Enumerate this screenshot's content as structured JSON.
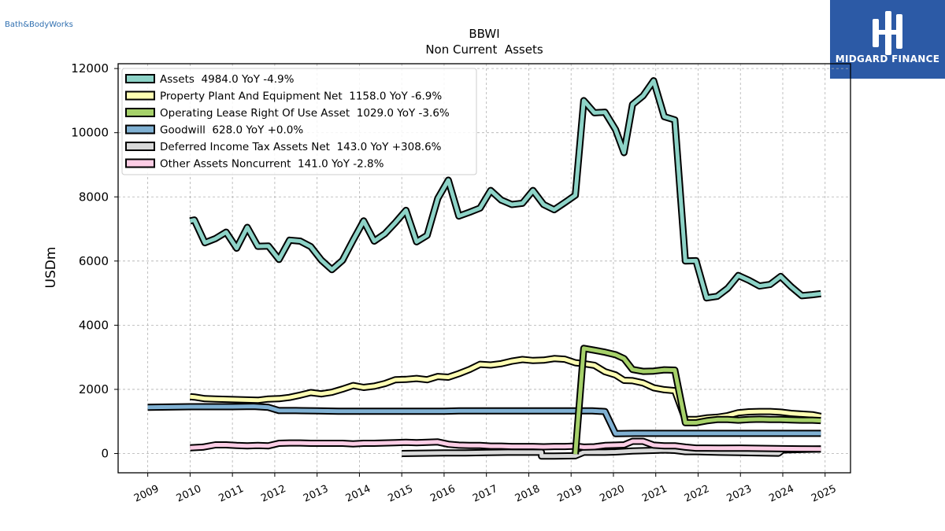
{
  "header": {
    "company_logo_text": "Bath&BodyWorks",
    "brand_name": "MIDGARD FINANCE"
  },
  "chart_data": {
    "type": "line",
    "title": "BBWI",
    "subtitle": "Non Current  Assets",
    "ylabel": "USDm",
    "xlabel": "",
    "ylim": [
      -600,
      12150
    ],
    "xlim": [
      2008.3,
      2025.6
    ],
    "yticks": [
      0,
      2000,
      4000,
      6000,
      8000,
      10000,
      12000
    ],
    "xticks": [
      "2009",
      "2010",
      "2011",
      "2012",
      "2013",
      "2014",
      "2015",
      "2016",
      "2017",
      "2018",
      "2019",
      "2020",
      "2021",
      "2022",
      "2023",
      "2024",
      "2025"
    ],
    "grid": true,
    "legend_position": "top-left",
    "series": [
      {
        "name": "Assets  4984.0 YoY -4.9%",
        "color": "#8dd3c7",
        "points": [
          [
            2010.0,
            7250
          ],
          [
            2010.1,
            7280
          ],
          [
            2010.35,
            6570
          ],
          [
            2010.6,
            6700
          ],
          [
            2010.85,
            6900
          ],
          [
            2011.1,
            6400
          ],
          [
            2011.35,
            7050
          ],
          [
            2011.6,
            6460
          ],
          [
            2011.85,
            6470
          ],
          [
            2012.1,
            6050
          ],
          [
            2012.35,
            6650
          ],
          [
            2012.6,
            6620
          ],
          [
            2012.85,
            6450
          ],
          [
            2013.1,
            6030
          ],
          [
            2013.35,
            5730
          ],
          [
            2013.6,
            6020
          ],
          [
            2013.85,
            6650
          ],
          [
            2014.1,
            7250
          ],
          [
            2014.35,
            6620
          ],
          [
            2014.6,
            6850
          ],
          [
            2014.85,
            7200
          ],
          [
            2015.1,
            7580
          ],
          [
            2015.35,
            6600
          ],
          [
            2015.6,
            6800
          ],
          [
            2015.85,
            7950
          ],
          [
            2016.1,
            8520
          ],
          [
            2016.35,
            7400
          ],
          [
            2016.6,
            7520
          ],
          [
            2016.85,
            7650
          ],
          [
            2017.1,
            8200
          ],
          [
            2017.35,
            7900
          ],
          [
            2017.6,
            7760
          ],
          [
            2017.85,
            7800
          ],
          [
            2018.1,
            8200
          ],
          [
            2018.35,
            7760
          ],
          [
            2018.6,
            7600
          ],
          [
            2018.85,
            7820
          ],
          [
            2019.1,
            8050
          ],
          [
            2019.3,
            11000
          ],
          [
            2019.55,
            10620
          ],
          [
            2019.8,
            10640
          ],
          [
            2020.05,
            10100
          ],
          [
            2020.25,
            9380
          ],
          [
            2020.45,
            10880
          ],
          [
            2020.7,
            11150
          ],
          [
            2020.95,
            11620
          ],
          [
            2021.2,
            10500
          ],
          [
            2021.45,
            10400
          ],
          [
            2021.7,
            6000
          ],
          [
            2021.95,
            6010
          ],
          [
            2022.2,
            4850
          ],
          [
            2022.45,
            4900
          ],
          [
            2022.7,
            5150
          ],
          [
            2022.95,
            5550
          ],
          [
            2023.2,
            5400
          ],
          [
            2023.45,
            5220
          ],
          [
            2023.7,
            5270
          ],
          [
            2023.95,
            5520
          ],
          [
            2024.2,
            5200
          ],
          [
            2024.45,
            4920
          ],
          [
            2024.7,
            4950
          ],
          [
            2024.9,
            4984
          ]
        ]
      },
      {
        "name": "Property Plant And Equipment Net  1158.0 YoY -6.9%",
        "color": "#ffffb3",
        "points": [
          [
            2010.0,
            1770
          ],
          [
            2010.1,
            1760
          ],
          [
            2010.35,
            1710
          ],
          [
            2010.6,
            1700
          ],
          [
            2010.85,
            1690
          ],
          [
            2011.1,
            1680
          ],
          [
            2011.35,
            1670
          ],
          [
            2011.6,
            1660
          ],
          [
            2011.85,
            1700
          ],
          [
            2012.1,
            1710
          ],
          [
            2012.35,
            1750
          ],
          [
            2012.6,
            1820
          ],
          [
            2012.85,
            1900
          ],
          [
            2013.1,
            1860
          ],
          [
            2013.35,
            1910
          ],
          [
            2013.6,
            2010
          ],
          [
            2013.85,
            2120
          ],
          [
            2014.1,
            2060
          ],
          [
            2014.35,
            2100
          ],
          [
            2014.6,
            2180
          ],
          [
            2014.85,
            2300
          ],
          [
            2015.1,
            2310
          ],
          [
            2015.35,
            2340
          ],
          [
            2015.6,
            2300
          ],
          [
            2015.85,
            2400
          ],
          [
            2016.1,
            2380
          ],
          [
            2016.35,
            2490
          ],
          [
            2016.6,
            2620
          ],
          [
            2016.85,
            2780
          ],
          [
            2017.1,
            2760
          ],
          [
            2017.35,
            2800
          ],
          [
            2017.6,
            2880
          ],
          [
            2017.85,
            2930
          ],
          [
            2018.1,
            2900
          ],
          [
            2018.35,
            2910
          ],
          [
            2018.6,
            2960
          ],
          [
            2018.85,
            2940
          ],
          [
            2019.1,
            2830
          ],
          [
            2019.3,
            2800
          ],
          [
            2019.55,
            2750
          ],
          [
            2019.8,
            2550
          ],
          [
            2020.05,
            2450
          ],
          [
            2020.25,
            2280
          ],
          [
            2020.45,
            2270
          ],
          [
            2020.7,
            2200
          ],
          [
            2020.95,
            2050
          ],
          [
            2021.2,
            1990
          ],
          [
            2021.45,
            1960
          ],
          [
            2021.7,
            1060
          ],
          [
            2021.95,
            1060
          ],
          [
            2022.2,
            1110
          ],
          [
            2022.45,
            1130
          ],
          [
            2022.7,
            1180
          ],
          [
            2022.95,
            1270
          ],
          [
            2023.2,
            1300
          ],
          [
            2023.45,
            1310
          ],
          [
            2023.7,
            1310
          ],
          [
            2023.95,
            1290
          ],
          [
            2024.2,
            1250
          ],
          [
            2024.45,
            1230
          ],
          [
            2024.7,
            1210
          ],
          [
            2024.9,
            1158
          ]
        ]
      },
      {
        "name": "Operating Lease Right Of Use Asset  1029.0 YoY -3.6%",
        "color": "#bebada",
        "draw_color": "#a6d16a",
        "points": [
          [
            2019.1,
            -20
          ],
          [
            2019.3,
            3280
          ],
          [
            2019.55,
            3220
          ],
          [
            2019.8,
            3160
          ],
          [
            2020.05,
            3080
          ],
          [
            2020.25,
            2960
          ],
          [
            2020.45,
            2620
          ],
          [
            2020.7,
            2560
          ],
          [
            2020.95,
            2570
          ],
          [
            2021.2,
            2610
          ],
          [
            2021.45,
            2600
          ],
          [
            2021.7,
            960
          ],
          [
            2021.95,
            960
          ],
          [
            2022.2,
            1020
          ],
          [
            2022.45,
            1060
          ],
          [
            2022.7,
            1060
          ],
          [
            2022.95,
            1040
          ],
          [
            2023.2,
            1060
          ],
          [
            2023.45,
            1070
          ],
          [
            2023.7,
            1060
          ],
          [
            2023.95,
            1060
          ],
          [
            2024.2,
            1050
          ],
          [
            2024.45,
            1040
          ],
          [
            2024.7,
            1040
          ],
          [
            2024.9,
            1029
          ]
        ]
      },
      {
        "name": "Goodwill  628.0 YoY +0.0%",
        "color": "#80b1d3",
        "points": [
          [
            2009.0,
            1440
          ],
          [
            2009.5,
            1450
          ],
          [
            2010.0,
            1460
          ],
          [
            2010.5,
            1460
          ],
          [
            2011.0,
            1460
          ],
          [
            2011.5,
            1470
          ],
          [
            2011.85,
            1440
          ],
          [
            2012.1,
            1340
          ],
          [
            2012.5,
            1340
          ],
          [
            2013.0,
            1330
          ],
          [
            2013.5,
            1320
          ],
          [
            2014.0,
            1320
          ],
          [
            2014.5,
            1320
          ],
          [
            2015.0,
            1320
          ],
          [
            2015.5,
            1320
          ],
          [
            2016.0,
            1320
          ],
          [
            2016.35,
            1330
          ],
          [
            2016.6,
            1330
          ],
          [
            2017.0,
            1330
          ],
          [
            2017.5,
            1330
          ],
          [
            2018.0,
            1330
          ],
          [
            2018.5,
            1330
          ],
          [
            2019.0,
            1330
          ],
          [
            2019.5,
            1330
          ],
          [
            2019.8,
            1310
          ],
          [
            2020.05,
            620
          ],
          [
            2020.5,
            628
          ],
          [
            2021.0,
            628
          ],
          [
            2021.5,
            628
          ],
          [
            2022.0,
            628
          ],
          [
            2022.5,
            628
          ],
          [
            2023.0,
            628
          ],
          [
            2023.5,
            628
          ],
          [
            2024.0,
            628
          ],
          [
            2024.5,
            628
          ],
          [
            2024.9,
            628
          ]
        ]
      },
      {
        "name": "Deferred Income Tax Assets Net  143.0 YoY +308.6%",
        "color": "#d9d9d9",
        "points": [
          [
            2015.0,
            0
          ],
          [
            2015.5,
            10
          ],
          [
            2016.0,
            20
          ],
          [
            2016.5,
            20
          ],
          [
            2017.0,
            30
          ],
          [
            2017.5,
            40
          ],
          [
            2018.0,
            40
          ],
          [
            2018.3,
            40
          ],
          [
            2018.3,
            -80
          ],
          [
            2018.6,
            -80
          ],
          [
            2019.1,
            -70
          ],
          [
            2019.3,
            40
          ],
          [
            2019.55,
            40
          ],
          [
            2019.8,
            40
          ],
          [
            2020.05,
            50
          ],
          [
            2020.45,
            80
          ],
          [
            2020.95,
            100
          ],
          [
            2021.2,
            110
          ],
          [
            2021.45,
            100
          ],
          [
            2021.7,
            60
          ],
          [
            2021.95,
            60
          ],
          [
            2022.5,
            40
          ],
          [
            2023.0,
            30
          ],
          [
            2023.5,
            20
          ],
          [
            2023.9,
            10
          ],
          [
            2024.0,
            110
          ],
          [
            2024.5,
            130
          ],
          [
            2024.9,
            143
          ]
        ]
      },
      {
        "name": "Other Assets Noncurrent  141.0 YoY -2.8%",
        "color": "#fccde5",
        "points": [
          [
            2010.0,
            180
          ],
          [
            2010.3,
            200
          ],
          [
            2010.6,
            270
          ],
          [
            2010.85,
            270
          ],
          [
            2011.1,
            250
          ],
          [
            2011.35,
            240
          ],
          [
            2011.6,
            250
          ],
          [
            2011.85,
            240
          ],
          [
            2012.1,
            320
          ],
          [
            2012.35,
            330
          ],
          [
            2012.6,
            330
          ],
          [
            2012.85,
            320
          ],
          [
            2013.1,
            320
          ],
          [
            2013.35,
            320
          ],
          [
            2013.6,
            320
          ],
          [
            2013.85,
            300
          ],
          [
            2014.1,
            320
          ],
          [
            2014.35,
            320
          ],
          [
            2014.6,
            330
          ],
          [
            2014.85,
            340
          ],
          [
            2015.1,
            350
          ],
          [
            2015.35,
            340
          ],
          [
            2015.6,
            350
          ],
          [
            2015.85,
            360
          ],
          [
            2016.1,
            290
          ],
          [
            2016.35,
            260
          ],
          [
            2016.6,
            250
          ],
          [
            2016.85,
            250
          ],
          [
            2017.1,
            230
          ],
          [
            2017.35,
            230
          ],
          [
            2017.6,
            220
          ],
          [
            2017.85,
            220
          ],
          [
            2018.1,
            220
          ],
          [
            2018.35,
            210
          ],
          [
            2018.6,
            220
          ],
          [
            2018.85,
            220
          ],
          [
            2019.1,
            230
          ],
          [
            2019.3,
            200
          ],
          [
            2019.55,
            210
          ],
          [
            2019.8,
            250
          ],
          [
            2020.05,
            260
          ],
          [
            2020.25,
            270
          ],
          [
            2020.45,
            380
          ],
          [
            2020.7,
            380
          ],
          [
            2020.95,
            260
          ],
          [
            2021.2,
            240
          ],
          [
            2021.45,
            240
          ],
          [
            2021.7,
            200
          ],
          [
            2021.95,
            170
          ],
          [
            2022.2,
            170
          ],
          [
            2022.5,
            165
          ],
          [
            2023.0,
            170
          ],
          [
            2023.5,
            160
          ],
          [
            2024.0,
            150
          ],
          [
            2024.5,
            145
          ],
          [
            2024.9,
            141
          ]
        ]
      }
    ]
  }
}
